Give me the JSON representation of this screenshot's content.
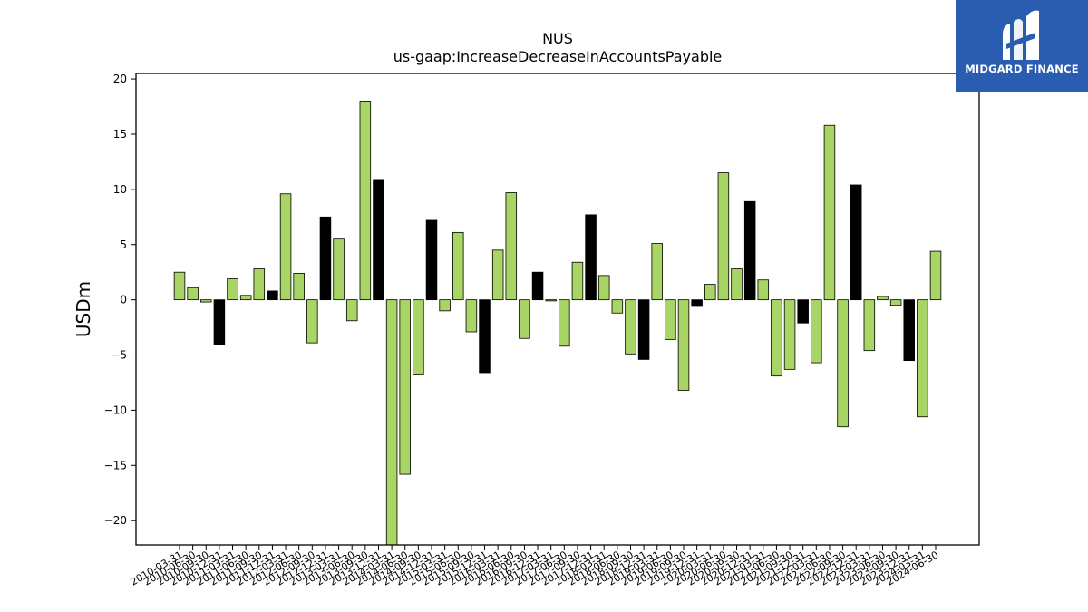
{
  "logo": {
    "text": "MIDGARD FINANCE",
    "bg_color": "#2a5db0"
  },
  "chart_data": {
    "type": "bar",
    "title": "NUS",
    "subtitle": "us-gaap:IncreaseDecreaseInAccountsPayable",
    "xlabel": "",
    "ylabel": "USDm",
    "ylim": [
      -22.2,
      20.5
    ],
    "yticks": [
      -20,
      -15,
      -10,
      -5,
      0,
      5,
      10,
      15,
      20
    ],
    "grid": false,
    "colors": {
      "default": "#a9d566",
      "highlight": "#000000",
      "edge": "#000000"
    },
    "categories": [
      "2010-03-31",
      "2010-06-30",
      "2010-09-30",
      "2010-12-31",
      "2011-03-31",
      "2011-06-30",
      "2011-09-30",
      "2011-12-31",
      "2012-03-31",
      "2012-06-30",
      "2012-09-30",
      "2012-12-31",
      "2013-03-31",
      "2013-06-30",
      "2013-09-30",
      "2013-12-31",
      "2014-03-31",
      "2014-06-30",
      "2014-09-30",
      "2014-12-31",
      "2015-03-31",
      "2015-06-30",
      "2015-09-30",
      "2015-12-31",
      "2016-03-31",
      "2016-06-30",
      "2016-09-30",
      "2016-12-31",
      "2017-03-31",
      "2017-06-30",
      "2017-09-30",
      "2017-12-31",
      "2018-03-31",
      "2018-06-30",
      "2018-09-30",
      "2018-12-31",
      "2019-03-31",
      "2019-06-30",
      "2019-09-30",
      "2019-12-31",
      "2020-03-31",
      "2020-06-30",
      "2020-09-30",
      "2020-12-31",
      "2021-03-31",
      "2021-06-30",
      "2021-09-30",
      "2021-12-31",
      "2022-03-31",
      "2022-06-30",
      "2022-09-30",
      "2022-12-31",
      "2023-03-31",
      "2023-06-30",
      "2023-09-30",
      "2023-12-31",
      "2024-03-31",
      "2024-06-30"
    ],
    "values": [
      2.5,
      1.1,
      -0.2,
      -4.1,
      1.9,
      0.4,
      2.8,
      0.8,
      9.6,
      2.4,
      -3.9,
      7.5,
      5.5,
      -1.9,
      18.0,
      10.9,
      -22.2,
      -15.8,
      -6.8,
      7.2,
      -1.0,
      6.1,
      -2.9,
      -6.6,
      4.5,
      9.7,
      -3.5,
      2.5,
      -0.1,
      -4.2,
      3.4,
      7.7,
      2.2,
      -1.2,
      -4.9,
      -5.4,
      5.1,
      -3.6,
      -8.2,
      -0.6,
      1.4,
      11.5,
      2.8,
      8.9,
      1.8,
      -6.9,
      -6.3,
      -2.1,
      -5.7,
      15.8,
      -11.5,
      10.4,
      -4.6,
      0.3,
      -0.5,
      -5.5,
      -10.6,
      4.4
    ],
    "highlight_indices": [
      3,
      7,
      11,
      15,
      19,
      23,
      27,
      31,
      35,
      39,
      43,
      47,
      51,
      55
    ]
  }
}
